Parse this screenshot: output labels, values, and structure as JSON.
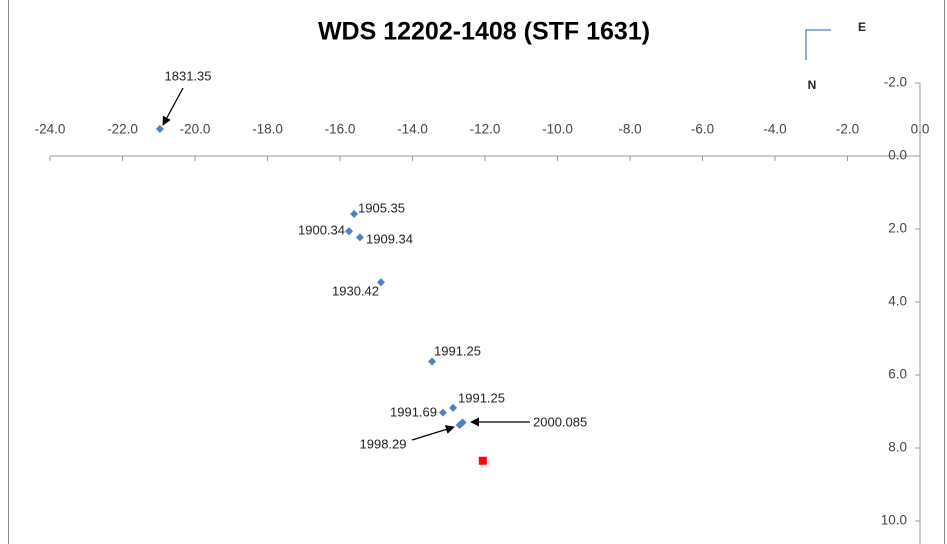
{
  "chart_data": {
    "type": "scatter",
    "title": "WDS 12202-1408 (STF 1631)",
    "annotations": [
      "E",
      "N"
    ],
    "xlim": [
      -24,
      0
    ],
    "xticks": [
      {
        "value": -24,
        "label": "-24.0"
      },
      {
        "value": -22,
        "label": "-22.0"
      },
      {
        "value": -20,
        "label": "-20.0"
      },
      {
        "value": -18,
        "label": "-18.0"
      },
      {
        "value": -16,
        "label": "-16.0"
      },
      {
        "value": -14,
        "label": "-14.0"
      },
      {
        "value": -12,
        "label": "-12.0"
      },
      {
        "value": -10,
        "label": "-10.0"
      },
      {
        "value": -8,
        "label": "-8.0"
      },
      {
        "value": -6,
        "label": "-6.0"
      },
      {
        "value": -4,
        "label": "-4.0"
      },
      {
        "value": -2,
        "label": "-2.0"
      },
      {
        "value": 0,
        "label": "0.0"
      }
    ],
    "ylim": [
      -2,
      10
    ],
    "y_inverted": true,
    "yticks": [
      {
        "value": -2,
        "label": "-2.0"
      },
      {
        "value": 0,
        "label": "0.0"
      },
      {
        "value": 2,
        "label": "2.0"
      },
      {
        "value": 4,
        "label": "4.0"
      },
      {
        "value": 6,
        "label": "6.0"
      },
      {
        "value": 8,
        "label": "8.0"
      },
      {
        "value": 10,
        "label": "10.0"
      }
    ],
    "series": [
      {
        "color": "#4f81bd",
        "marker": "diamond",
        "x": [
          -20.97,
          -15.61,
          -15.75,
          -15.45,
          -14.87,
          -13.46,
          -12.88,
          -13.16,
          -12.7,
          -12.62
        ],
        "values": [
          -0.74,
          1.59,
          2.06,
          2.23,
          3.46,
          5.63,
          6.9,
          7.03,
          7.37,
          7.3
        ],
        "point_labels": [
          "1831.35",
          "1905.35",
          "1900.34",
          "1909.34",
          "1930.42",
          "1991.25",
          "1991.25",
          "1991.69",
          "1998.29",
          "2000.085"
        ]
      },
      {
        "color": "#ff0000",
        "marker": "square",
        "x": [
          -12.06
        ],
        "values": [
          8.35
        ]
      }
    ]
  }
}
